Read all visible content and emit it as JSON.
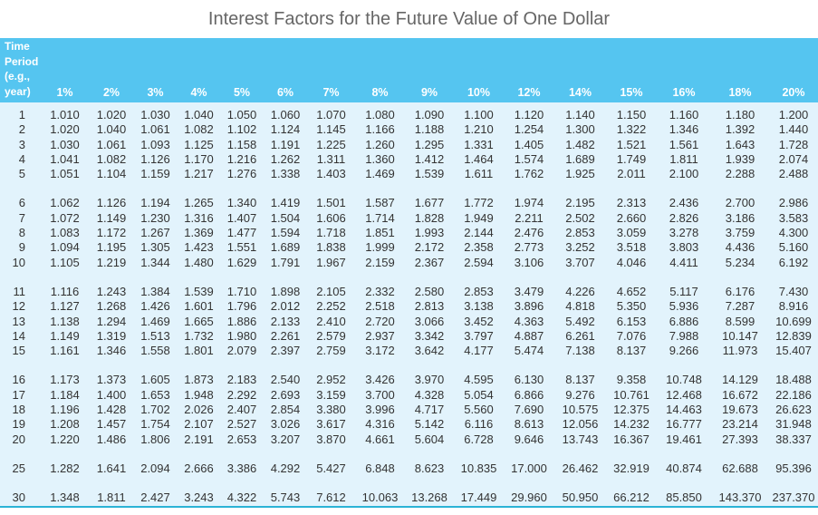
{
  "title": "Interest Factors for the Future Value of One Dollar",
  "header": {
    "period_label": [
      "Time",
      "Period",
      "(e.g.,",
      "year)"
    ],
    "rates": [
      "1%",
      "2%",
      "3%",
      "4%",
      "5%",
      "6%",
      "7%",
      "8%",
      "9%",
      "10%",
      "12%",
      "14%",
      "15%",
      "16%",
      "18%",
      "20%"
    ]
  },
  "colors": {
    "header_bg": "#55c5f0",
    "body_bg": "#e2f3fc",
    "bottom_rule": "#2bb3d6"
  },
  "groups": [
    [
      {
        "period": "1",
        "values": [
          "1.010",
          "1.020",
          "1.030",
          "1.040",
          "1.050",
          "1.060",
          "1.070",
          "1.080",
          "1.090",
          "1.100",
          "1.120",
          "1.140",
          "1.150",
          "1.160",
          "1.180",
          "1.200"
        ]
      },
      {
        "period": "2",
        "values": [
          "1.020",
          "1.040",
          "1.061",
          "1.082",
          "1.102",
          "1.124",
          "1.145",
          "1.166",
          "1.188",
          "1.210",
          "1.254",
          "1.300",
          "1.322",
          "1.346",
          "1.392",
          "1.440"
        ]
      },
      {
        "period": "3",
        "values": [
          "1.030",
          "1.061",
          "1.093",
          "1.125",
          "1.158",
          "1.191",
          "1.225",
          "1.260",
          "1.295",
          "1.331",
          "1.405",
          "1.482",
          "1.521",
          "1.561",
          "1.643",
          "1.728"
        ]
      },
      {
        "period": "4",
        "values": [
          "1.041",
          "1.082",
          "1.126",
          "1.170",
          "1.216",
          "1.262",
          "1.311",
          "1.360",
          "1.412",
          "1.464",
          "1.574",
          "1.689",
          "1.749",
          "1.811",
          "1.939",
          "2.074"
        ]
      },
      {
        "period": "5",
        "values": [
          "1.051",
          "1.104",
          "1.159",
          "1.217",
          "1.276",
          "1.338",
          "1.403",
          "1.469",
          "1.539",
          "1.611",
          "1.762",
          "1.925",
          "2.011",
          "2.100",
          "2.288",
          "2.488"
        ]
      }
    ],
    [
      {
        "period": "6",
        "values": [
          "1.062",
          "1.126",
          "1.194",
          "1.265",
          "1.340",
          "1.419",
          "1.501",
          "1.587",
          "1.677",
          "1.772",
          "1.974",
          "2.195",
          "2.313",
          "2.436",
          "2.700",
          "2.986"
        ]
      },
      {
        "period": "7",
        "values": [
          "1.072",
          "1.149",
          "1.230",
          "1.316",
          "1.407",
          "1.504",
          "1.606",
          "1.714",
          "1.828",
          "1.949",
          "2.211",
          "2.502",
          "2.660",
          "2.826",
          "3.186",
          "3.583"
        ]
      },
      {
        "period": "8",
        "values": [
          "1.083",
          "1.172",
          "1.267",
          "1.369",
          "1.477",
          "1.594",
          "1.718",
          "1.851",
          "1.993",
          "2.144",
          "2.476",
          "2.853",
          "3.059",
          "3.278",
          "3.759",
          "4.300"
        ]
      },
      {
        "period": "9",
        "values": [
          "1.094",
          "1.195",
          "1.305",
          "1.423",
          "1.551",
          "1.689",
          "1.838",
          "1.999",
          "2.172",
          "2.358",
          "2.773",
          "3.252",
          "3.518",
          "3.803",
          "4.436",
          "5.160"
        ]
      },
      {
        "period": "10",
        "values": [
          "1.105",
          "1.219",
          "1.344",
          "1.480",
          "1.629",
          "1.791",
          "1.967",
          "2.159",
          "2.367",
          "2.594",
          "3.106",
          "3.707",
          "4.046",
          "4.411",
          "5.234",
          "6.192"
        ]
      }
    ],
    [
      {
        "period": "11",
        "values": [
          "1.116",
          "1.243",
          "1.384",
          "1.539",
          "1.710",
          "1.898",
          "2.105",
          "2.332",
          "2.580",
          "2.853",
          "3.479",
          "4.226",
          "4.652",
          "5.117",
          "6.176",
          "7.430"
        ]
      },
      {
        "period": "12",
        "values": [
          "1.127",
          "1.268",
          "1.426",
          "1.601",
          "1.796",
          "2.012",
          "2.252",
          "2.518",
          "2.813",
          "3.138",
          "3.896",
          "4.818",
          "5.350",
          "5.936",
          "7.287",
          "8.916"
        ]
      },
      {
        "period": "13",
        "values": [
          "1.138",
          "1.294",
          "1.469",
          "1.665",
          "1.886",
          "2.133",
          "2.410",
          "2.720",
          "3.066",
          "3.452",
          "4.363",
          "5.492",
          "6.153",
          "6.886",
          "8.599",
          "10.699"
        ]
      },
      {
        "period": "14",
        "values": [
          "1.149",
          "1.319",
          "1.513",
          "1.732",
          "1.980",
          "2.261",
          "2.579",
          "2.937",
          "3.342",
          "3.797",
          "4.887",
          "6.261",
          "7.076",
          "7.988",
          "10.147",
          "12.839"
        ]
      },
      {
        "period": "15",
        "values": [
          "1.161",
          "1.346",
          "1.558",
          "1.801",
          "2.079",
          "2.397",
          "2.759",
          "3.172",
          "3.642",
          "4.177",
          "5.474",
          "7.138",
          "8.137",
          "9.266",
          "11.973",
          "15.407"
        ]
      }
    ],
    [
      {
        "period": "16",
        "values": [
          "1.173",
          "1.373",
          "1.605",
          "1.873",
          "2.183",
          "2.540",
          "2.952",
          "3.426",
          "3.970",
          "4.595",
          "6.130",
          "8.137",
          "9.358",
          "10.748",
          "14.129",
          "18.488"
        ]
      },
      {
        "period": "17",
        "values": [
          "1.184",
          "1.400",
          "1.653",
          "1.948",
          "2.292",
          "2.693",
          "3.159",
          "3.700",
          "4.328",
          "5.054",
          "6.866",
          "9.276",
          "10.761",
          "12.468",
          "16.672",
          "22.186"
        ]
      },
      {
        "period": "18",
        "values": [
          "1.196",
          "1.428",
          "1.702",
          "2.026",
          "2.407",
          "2.854",
          "3.380",
          "3.996",
          "4.717",
          "5.560",
          "7.690",
          "10.575",
          "12.375",
          "14.463",
          "19.673",
          "26.623"
        ]
      },
      {
        "period": "19",
        "values": [
          "1.208",
          "1.457",
          "1.754",
          "2.107",
          "2.527",
          "3.026",
          "3.617",
          "4.316",
          "5.142",
          "6.116",
          "8.613",
          "12.056",
          "14.232",
          "16.777",
          "23.214",
          "31.948"
        ]
      },
      {
        "period": "20",
        "values": [
          "1.220",
          "1.486",
          "1.806",
          "2.191",
          "2.653",
          "3.207",
          "3.870",
          "4.661",
          "5.604",
          "6.728",
          "9.646",
          "13.743",
          "16.367",
          "19.461",
          "27.393",
          "38.337"
        ]
      }
    ],
    [
      {
        "period": "25",
        "values": [
          "1.282",
          "1.641",
          "2.094",
          "2.666",
          "3.386",
          "4.292",
          "5.427",
          "6.848",
          "8.623",
          "10.835",
          "17.000",
          "26.462",
          "32.919",
          "40.874",
          "62.688",
          "95.396"
        ]
      }
    ],
    [
      {
        "period": "30",
        "values": [
          "1.348",
          "1.811",
          "2.427",
          "3.243",
          "4.322",
          "5.743",
          "7.612",
          "10.063",
          "13.268",
          "17.449",
          "29.960",
          "50.950",
          "66.212",
          "85.850",
          "143.370",
          "237.370"
        ]
      }
    ]
  ]
}
